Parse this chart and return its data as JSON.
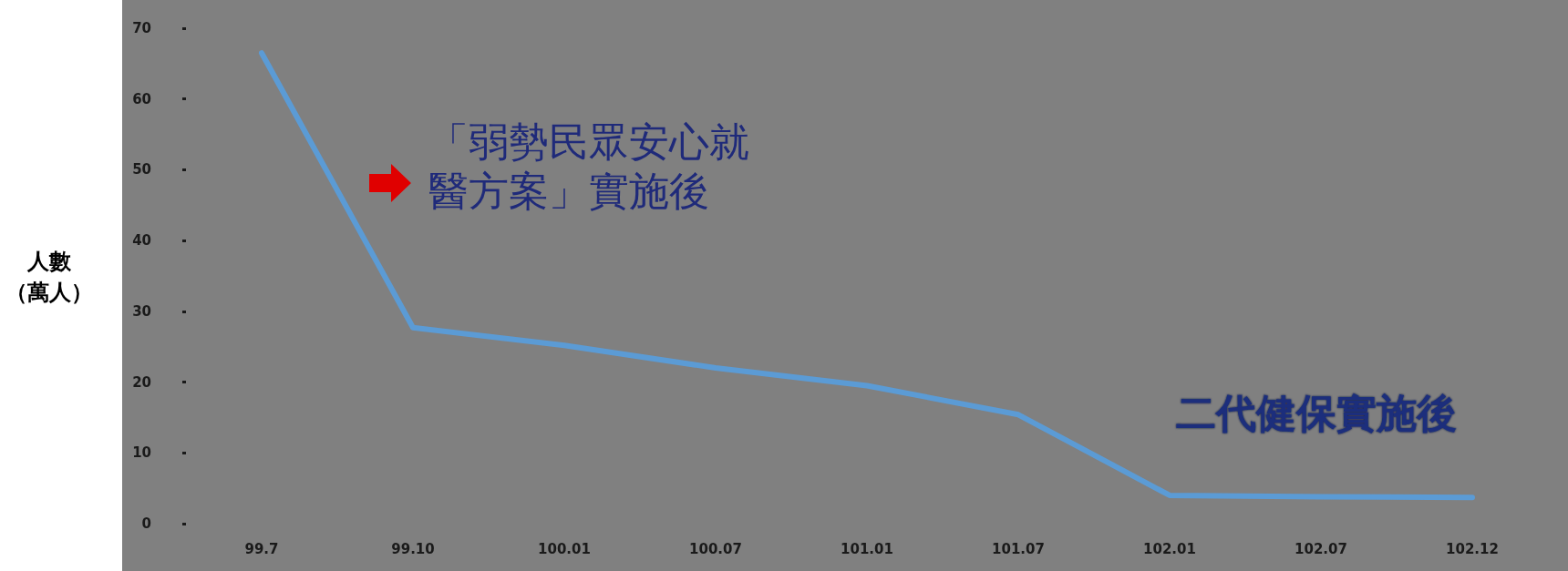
{
  "chart_data": {
    "type": "line",
    "ylabel": "人數（萬人）",
    "categories": [
      "99.7",
      "99.10",
      "100.01",
      "100.07",
      "101.01",
      "101.07",
      "102.01",
      "102.07",
      "102.12"
    ],
    "series": [
      {
        "color": "#5b9bd5",
        "values": [
          66.5,
          27.7,
          25.2,
          22,
          19.5,
          15.4,
          4,
          3.8,
          3.7
        ]
      }
    ],
    "ylim": [
      0,
      70
    ],
    "yticks": [
      0,
      10,
      20,
      30,
      40,
      50,
      60,
      70
    ],
    "grid": false,
    "marker": "none",
    "line_style": "solid",
    "annotations": [
      "「弱勢民眾安心就醫方案」實施後",
      "二代健保實施後"
    ]
  }
}
